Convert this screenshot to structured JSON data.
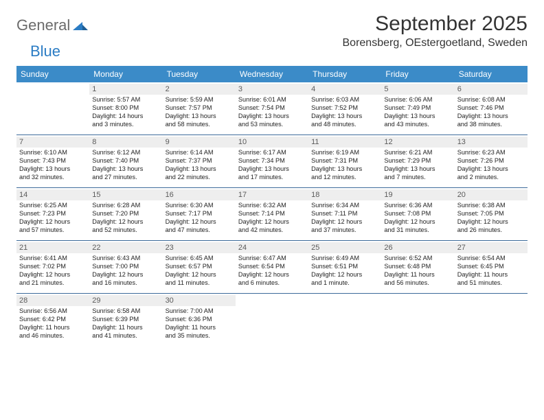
{
  "logo": {
    "general": "General",
    "blue": "Blue",
    "mark_color": "#2b7cc4"
  },
  "title": "September 2025",
  "location": "Borensberg, OEstergoetland, Sweden",
  "day_headers": [
    "Sunday",
    "Monday",
    "Tuesday",
    "Wednesday",
    "Thursday",
    "Friday",
    "Saturday"
  ],
  "colors": {
    "header_bg": "#3b8bc8",
    "header_text": "#ffffff",
    "row_border": "#3b6a9a",
    "daynum_bg": "#eeeeee",
    "daynum_text": "#5a5a5a",
    "body_text": "#222222",
    "title_text": "#333333",
    "logo_gray": "#6b6b6b"
  },
  "weeks": [
    [
      {
        "n": "",
        "empty": true
      },
      {
        "n": "1",
        "sunrise": "Sunrise: 5:57 AM",
        "sunset": "Sunset: 8:00 PM",
        "day1": "Daylight: 14 hours",
        "day2": "and 3 minutes."
      },
      {
        "n": "2",
        "sunrise": "Sunrise: 5:59 AM",
        "sunset": "Sunset: 7:57 PM",
        "day1": "Daylight: 13 hours",
        "day2": "and 58 minutes."
      },
      {
        "n": "3",
        "sunrise": "Sunrise: 6:01 AM",
        "sunset": "Sunset: 7:54 PM",
        "day1": "Daylight: 13 hours",
        "day2": "and 53 minutes."
      },
      {
        "n": "4",
        "sunrise": "Sunrise: 6:03 AM",
        "sunset": "Sunset: 7:52 PM",
        "day1": "Daylight: 13 hours",
        "day2": "and 48 minutes."
      },
      {
        "n": "5",
        "sunrise": "Sunrise: 6:06 AM",
        "sunset": "Sunset: 7:49 PM",
        "day1": "Daylight: 13 hours",
        "day2": "and 43 minutes."
      },
      {
        "n": "6",
        "sunrise": "Sunrise: 6:08 AM",
        "sunset": "Sunset: 7:46 PM",
        "day1": "Daylight: 13 hours",
        "day2": "and 38 minutes."
      }
    ],
    [
      {
        "n": "7",
        "sunrise": "Sunrise: 6:10 AM",
        "sunset": "Sunset: 7:43 PM",
        "day1": "Daylight: 13 hours",
        "day2": "and 32 minutes."
      },
      {
        "n": "8",
        "sunrise": "Sunrise: 6:12 AM",
        "sunset": "Sunset: 7:40 PM",
        "day1": "Daylight: 13 hours",
        "day2": "and 27 minutes."
      },
      {
        "n": "9",
        "sunrise": "Sunrise: 6:14 AM",
        "sunset": "Sunset: 7:37 PM",
        "day1": "Daylight: 13 hours",
        "day2": "and 22 minutes."
      },
      {
        "n": "10",
        "sunrise": "Sunrise: 6:17 AM",
        "sunset": "Sunset: 7:34 PM",
        "day1": "Daylight: 13 hours",
        "day2": "and 17 minutes."
      },
      {
        "n": "11",
        "sunrise": "Sunrise: 6:19 AM",
        "sunset": "Sunset: 7:31 PM",
        "day1": "Daylight: 13 hours",
        "day2": "and 12 minutes."
      },
      {
        "n": "12",
        "sunrise": "Sunrise: 6:21 AM",
        "sunset": "Sunset: 7:29 PM",
        "day1": "Daylight: 13 hours",
        "day2": "and 7 minutes."
      },
      {
        "n": "13",
        "sunrise": "Sunrise: 6:23 AM",
        "sunset": "Sunset: 7:26 PM",
        "day1": "Daylight: 13 hours",
        "day2": "and 2 minutes."
      }
    ],
    [
      {
        "n": "14",
        "sunrise": "Sunrise: 6:25 AM",
        "sunset": "Sunset: 7:23 PM",
        "day1": "Daylight: 12 hours",
        "day2": "and 57 minutes."
      },
      {
        "n": "15",
        "sunrise": "Sunrise: 6:28 AM",
        "sunset": "Sunset: 7:20 PM",
        "day1": "Daylight: 12 hours",
        "day2": "and 52 minutes."
      },
      {
        "n": "16",
        "sunrise": "Sunrise: 6:30 AM",
        "sunset": "Sunset: 7:17 PM",
        "day1": "Daylight: 12 hours",
        "day2": "and 47 minutes."
      },
      {
        "n": "17",
        "sunrise": "Sunrise: 6:32 AM",
        "sunset": "Sunset: 7:14 PM",
        "day1": "Daylight: 12 hours",
        "day2": "and 42 minutes."
      },
      {
        "n": "18",
        "sunrise": "Sunrise: 6:34 AM",
        "sunset": "Sunset: 7:11 PM",
        "day1": "Daylight: 12 hours",
        "day2": "and 37 minutes."
      },
      {
        "n": "19",
        "sunrise": "Sunrise: 6:36 AM",
        "sunset": "Sunset: 7:08 PM",
        "day1": "Daylight: 12 hours",
        "day2": "and 31 minutes."
      },
      {
        "n": "20",
        "sunrise": "Sunrise: 6:38 AM",
        "sunset": "Sunset: 7:05 PM",
        "day1": "Daylight: 12 hours",
        "day2": "and 26 minutes."
      }
    ],
    [
      {
        "n": "21",
        "sunrise": "Sunrise: 6:41 AM",
        "sunset": "Sunset: 7:02 PM",
        "day1": "Daylight: 12 hours",
        "day2": "and 21 minutes."
      },
      {
        "n": "22",
        "sunrise": "Sunrise: 6:43 AM",
        "sunset": "Sunset: 7:00 PM",
        "day1": "Daylight: 12 hours",
        "day2": "and 16 minutes."
      },
      {
        "n": "23",
        "sunrise": "Sunrise: 6:45 AM",
        "sunset": "Sunset: 6:57 PM",
        "day1": "Daylight: 12 hours",
        "day2": "and 11 minutes."
      },
      {
        "n": "24",
        "sunrise": "Sunrise: 6:47 AM",
        "sunset": "Sunset: 6:54 PM",
        "day1": "Daylight: 12 hours",
        "day2": "and 6 minutes."
      },
      {
        "n": "25",
        "sunrise": "Sunrise: 6:49 AM",
        "sunset": "Sunset: 6:51 PM",
        "day1": "Daylight: 12 hours",
        "day2": "and 1 minute."
      },
      {
        "n": "26",
        "sunrise": "Sunrise: 6:52 AM",
        "sunset": "Sunset: 6:48 PM",
        "day1": "Daylight: 11 hours",
        "day2": "and 56 minutes."
      },
      {
        "n": "27",
        "sunrise": "Sunrise: 6:54 AM",
        "sunset": "Sunset: 6:45 PM",
        "day1": "Daylight: 11 hours",
        "day2": "and 51 minutes."
      }
    ],
    [
      {
        "n": "28",
        "sunrise": "Sunrise: 6:56 AM",
        "sunset": "Sunset: 6:42 PM",
        "day1": "Daylight: 11 hours",
        "day2": "and 46 minutes."
      },
      {
        "n": "29",
        "sunrise": "Sunrise: 6:58 AM",
        "sunset": "Sunset: 6:39 PM",
        "day1": "Daylight: 11 hours",
        "day2": "and 41 minutes."
      },
      {
        "n": "30",
        "sunrise": "Sunrise: 7:00 AM",
        "sunset": "Sunset: 6:36 PM",
        "day1": "Daylight: 11 hours",
        "day2": "and 35 minutes."
      },
      {
        "n": "",
        "empty": true
      },
      {
        "n": "",
        "empty": true
      },
      {
        "n": "",
        "empty": true
      },
      {
        "n": "",
        "empty": true
      }
    ]
  ]
}
